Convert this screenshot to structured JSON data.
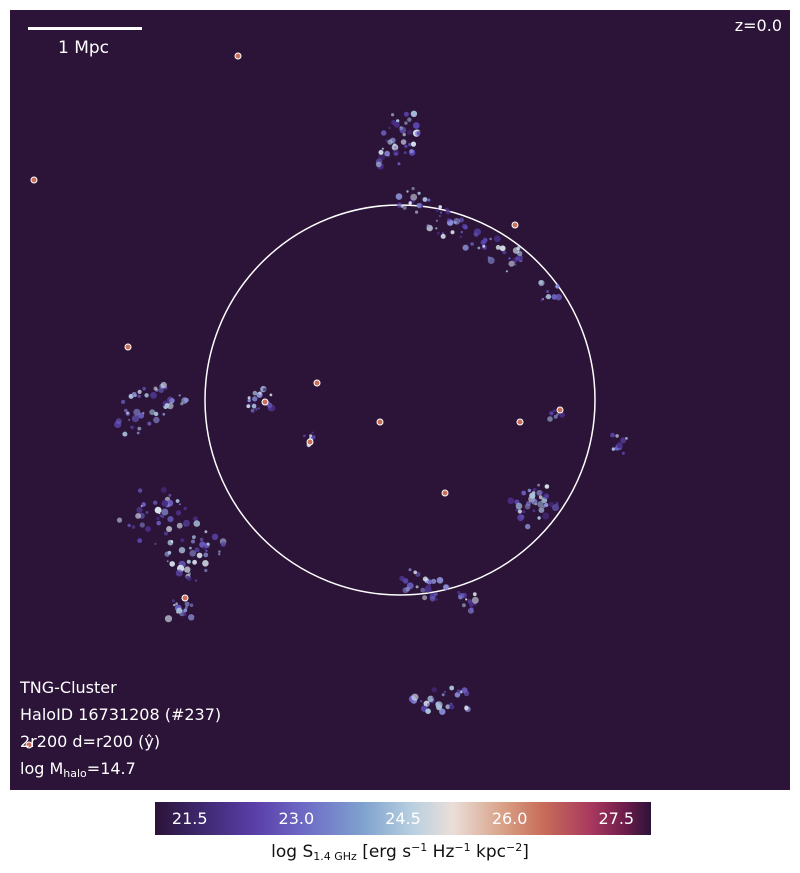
{
  "map": {
    "scale_label": "1 Mpc",
    "redshift": "z=0.0",
    "info": {
      "simulation": "TNG-Cluster",
      "halo_id": "HaloID 16731208 (#237)",
      "region": "2r200 d=r200 (ŷ)",
      "mass_prefix": "log M",
      "mass_sub": "halo",
      "mass_value": "=14.7"
    }
  },
  "colorbar": {
    "ticks": [
      "21.5",
      "23.0",
      "24.5",
      "26.0",
      "27.5"
    ],
    "label_prefix": "log S",
    "label_sub": "1.4 GHz",
    "label_units_a": " [erg s",
    "label_sup1": "−1",
    "label_units_b": " Hz",
    "label_sup2": "−1",
    "label_units_c": " kpc",
    "label_sup3": "−2",
    "label_units_d": "]"
  },
  "colors": {
    "background": "#2c1338",
    "circle": "#ffffff"
  }
}
